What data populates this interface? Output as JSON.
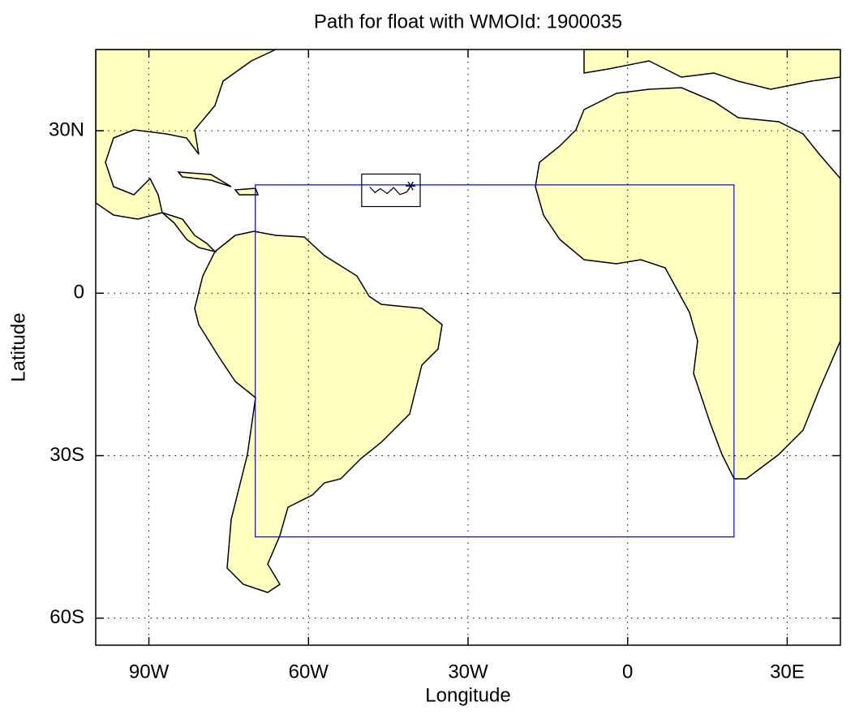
{
  "chart_data": {
    "type": "map",
    "title": "Path for float with WMOId: 1900035",
    "x_label": "Longitude",
    "y_label": "Latitude",
    "xlim": [
      -100,
      40
    ],
    "ylim": [
      -65,
      45
    ],
    "xticks": [
      {
        "value": -90,
        "label": "90W"
      },
      {
        "value": -60,
        "label": "60W"
      },
      {
        "value": -30,
        "label": "30W"
      },
      0,
      {
        "value": 30,
        "label": "30E"
      }
    ],
    "yticks": [
      {
        "value": -60,
        "label": "60S"
      },
      {
        "value": -30,
        "label": "30S"
      },
      0,
      {
        "value": 30,
        "label": "30N"
      }
    ],
    "grid": true,
    "land_color": "#ffffc0",
    "region": {
      "lon": [
        -70,
        20
      ],
      "lat": [
        -45,
        20
      ],
      "color": "#0000ff"
    },
    "zoom_box": {
      "lon": [
        -50,
        -39
      ],
      "lat": [
        16,
        22
      ],
      "color": "#000000"
    },
    "float_path": {
      "x": [
        -48.5,
        -47.5,
        -46.5,
        -45.2,
        -44,
        -42.8,
        -41.5,
        -40.8
      ],
      "y": [
        19.6,
        18.6,
        19.3,
        18.4,
        19.5,
        18.2,
        18.7,
        19.8
      ],
      "color": "#000000"
    }
  }
}
